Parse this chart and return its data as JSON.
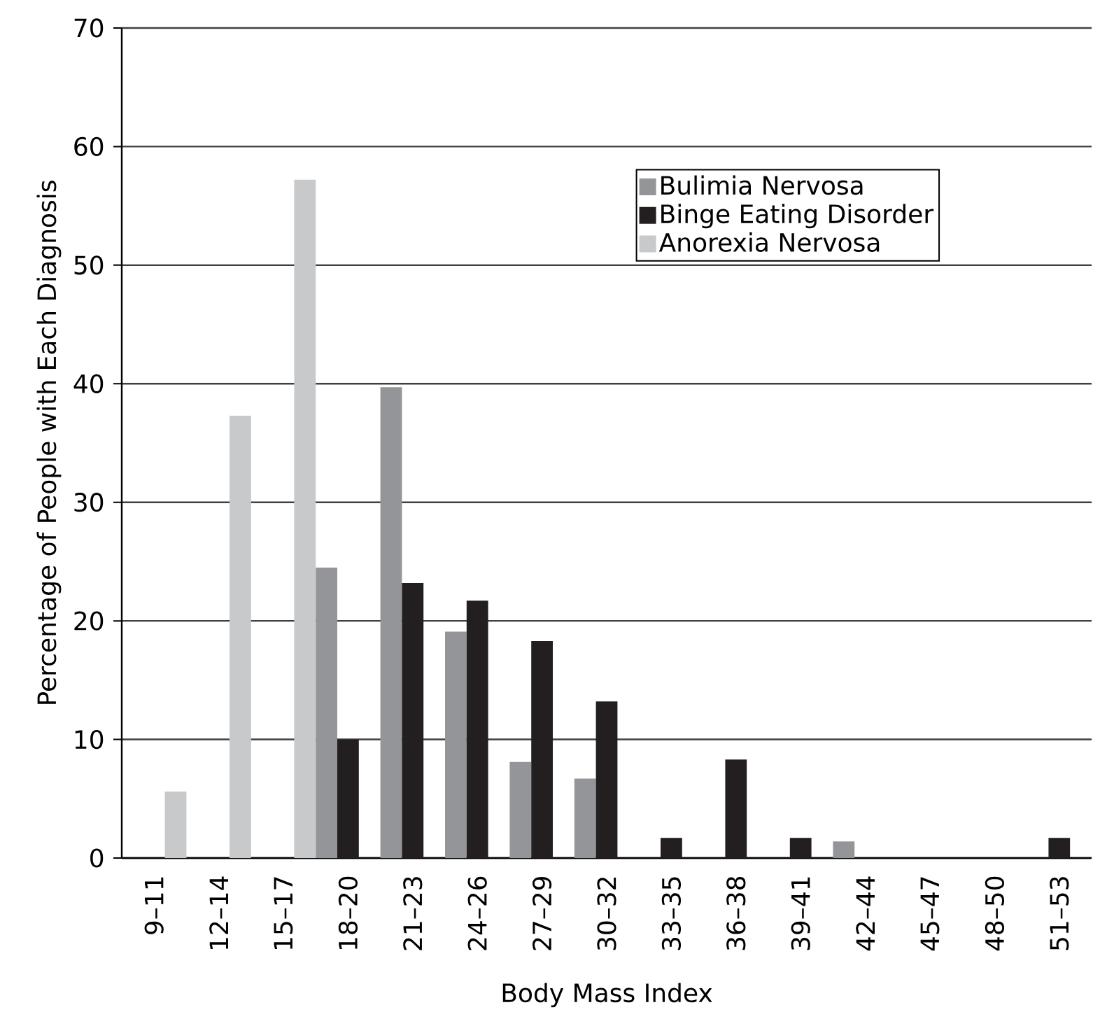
{
  "chart_data": {
    "type": "bar",
    "xlabel": "Body Mass Index",
    "ylabel": "Percentage of People with Each Diagnosis",
    "categories": [
      "9–11",
      "12–14",
      "15–17",
      "18–20",
      "21–23",
      "24–26",
      "27–29",
      "30–32",
      "33–35",
      "36–38",
      "39–41",
      "42–44",
      "45–47",
      "48–50",
      "51–53"
    ],
    "series": [
      {
        "name": "Bulimia Nervosa",
        "color": "#939598",
        "values": [
          0,
          0,
          0,
          24.5,
          39.7,
          19.1,
          8.1,
          6.7,
          0,
          0,
          0,
          1.4,
          0,
          0,
          0
        ]
      },
      {
        "name": "Binge Eating Disorder",
        "color": "#231f20",
        "values": [
          0,
          0,
          0,
          10,
          23.2,
          21.7,
          18.3,
          13.2,
          1.7,
          8.3,
          1.7,
          0,
          0,
          0,
          1.7
        ]
      },
      {
        "name": "Anorexia Nervosa",
        "color": "#c8c9cb",
        "values": [
          5.6,
          37.3,
          57.2,
          0,
          0,
          0,
          0,
          0,
          0,
          0,
          0,
          0,
          0,
          0,
          0
        ]
      }
    ],
    "ylim": [
      0,
      70
    ],
    "yticks": [
      0,
      10,
      20,
      30,
      40,
      50,
      60,
      70
    ],
    "grid": "y",
    "legend": "top right"
  }
}
